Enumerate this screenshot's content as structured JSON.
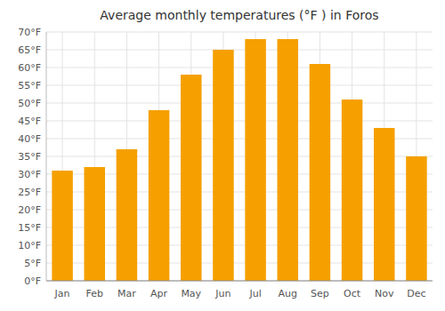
{
  "chart_data": {
    "type": "bar",
    "title": "Average monthly temperatures (°F ) in Foros",
    "categories": [
      "Jan",
      "Feb",
      "Mar",
      "Apr",
      "May",
      "Jun",
      "Jul",
      "Aug",
      "Sep",
      "Oct",
      "Nov",
      "Dec"
    ],
    "values": [
      31,
      32,
      37,
      48,
      58,
      65,
      68,
      68,
      61,
      51,
      43,
      35
    ],
    "color": "#F5A000",
    "ylim": [
      0,
      70
    ],
    "yticks": [
      {
        "value": 0,
        "label": "0°F"
      },
      {
        "value": 5,
        "label": "5°F"
      },
      {
        "value": 10,
        "label": "10°F"
      },
      {
        "value": 15,
        "label": "15°F"
      },
      {
        "value": 20,
        "label": "20°F"
      },
      {
        "value": 25,
        "label": "25°F"
      },
      {
        "value": 30,
        "label": "30°F"
      },
      {
        "value": 35,
        "label": "35°F"
      },
      {
        "value": 40,
        "label": "40°F"
      },
      {
        "value": 45,
        "label": "45°F"
      },
      {
        "value": 50,
        "label": "50°F"
      },
      {
        "value": 55,
        "label": "55°F"
      },
      {
        "value": 60,
        "label": "60°F"
      },
      {
        "value": 65,
        "label": "65°F"
      },
      {
        "value": 70,
        "label": "70°F"
      }
    ],
    "grid": true
  }
}
